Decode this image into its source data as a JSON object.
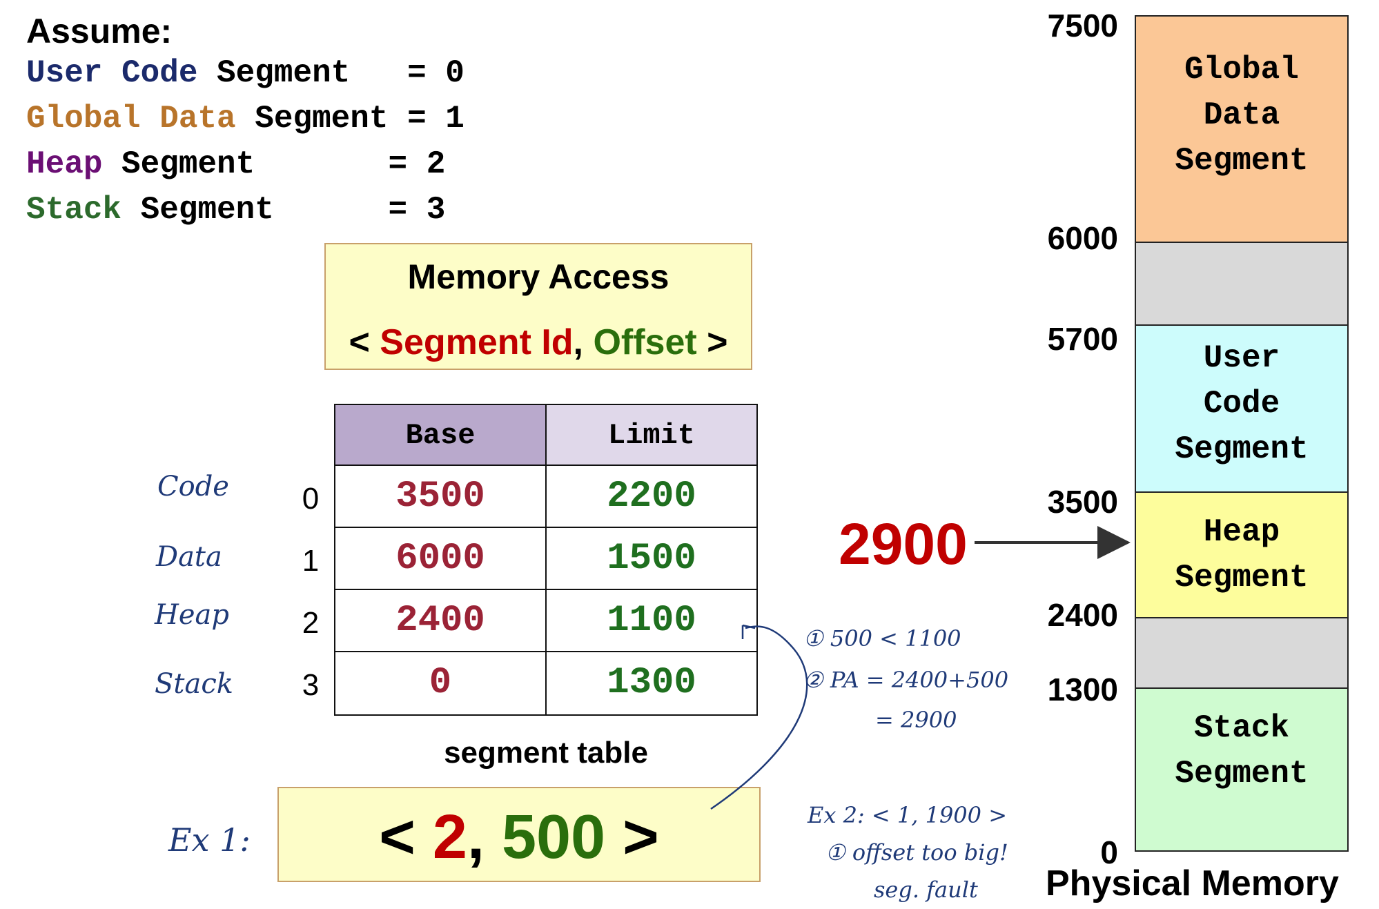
{
  "assume": {
    "title": "Assume:",
    "lines": [
      {
        "name": "User Code",
        "rest": " Segment   = 0",
        "color": "#1b2a6b"
      },
      {
        "name": "Global Data",
        "rest": " Segment = 1",
        "color": "#b8742a"
      },
      {
        "name": "Heap",
        "rest": " Segment       = 2",
        "color": "#6b0f74"
      },
      {
        "name": "Stack",
        "rest": " Segment      = 3",
        "color": "#2c6a2c"
      }
    ]
  },
  "memory_access": {
    "title": "Memory Access",
    "open": "< ",
    "segment_id": "Segment Id",
    "comma": ", ",
    "offset": "Offset",
    "close": " >"
  },
  "segment_table": {
    "headers": [
      "Base",
      "Limit"
    ],
    "rows": [
      {
        "index": "0",
        "label": "Code",
        "base": "3500",
        "limit": "2200"
      },
      {
        "index": "1",
        "label": "Data",
        "base": "6000",
        "limit": "1500"
      },
      {
        "index": "2",
        "label": "Heap",
        "base": "2400",
        "limit": "1100"
      },
      {
        "index": "3",
        "label": "Stack",
        "base": "0",
        "limit": "1300"
      }
    ],
    "caption": "segment table"
  },
  "example1": {
    "label": "Ex 1:",
    "open": "< ",
    "segment": "2",
    "comma": ", ",
    "offset": "500",
    "close": " >",
    "notes": [
      "① 500 < 1100",
      "② PA = 2400+500",
      "= 2900"
    ]
  },
  "example2": {
    "notes": [
      "Ex 2: < 1, 1900 >",
      "① offset too big!",
      "seg. fault"
    ]
  },
  "physical_address": "2900",
  "physical_memory": {
    "title": "Physical Memory",
    "addresses": [
      "7500",
      "6000",
      "5700",
      "3500",
      "2400",
      "1300",
      "0"
    ],
    "regions": [
      {
        "label": "Global Data Segment",
        "lines": [
          "Global",
          "Data",
          "Segment"
        ],
        "color": "#fbc796"
      },
      {
        "label": "",
        "lines": [],
        "color": "#d9d9d9"
      },
      {
        "label": "User Code Segment",
        "lines": [
          "User",
          "Code",
          "Segment"
        ],
        "color": "#cdfcfc"
      },
      {
        "label": "Heap Segment",
        "lines": [
          "Heap",
          "Segment"
        ],
        "color": "#fdfd9c"
      },
      {
        "label": "",
        "lines": [],
        "color": "#d9d9d9"
      },
      {
        "label": "Stack Segment",
        "lines": [
          "Stack",
          "Segment"
        ],
        "color": "#cffbd0"
      }
    ]
  }
}
